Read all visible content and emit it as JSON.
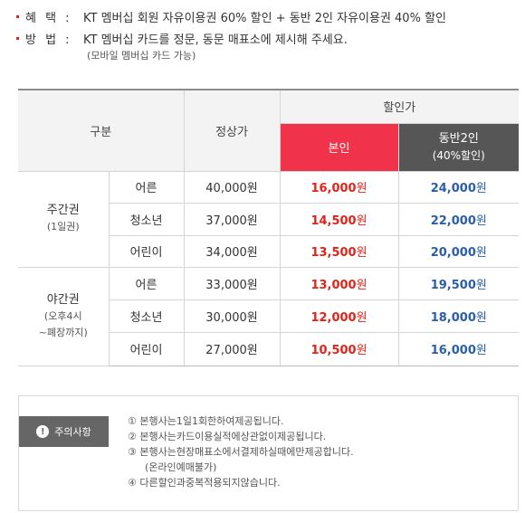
{
  "info": {
    "benefit_key": "혜 택 :",
    "benefit_text": "KT 멤버십 회원 자유이용권 60% 할인 + 동반 2인 자유이용권 40% 할인",
    "method_key": "방 법 :",
    "method_text": "KT 멤버십 카드를 정문, 동문 매표소에 제시해 주세요.",
    "method_note": "(모바일 멤버십 카드 가능)"
  },
  "table": {
    "header": {
      "category": "구분",
      "regular": "정상가",
      "discount": "할인가",
      "self": "본인",
      "companion": "동반2인",
      "companion_sub": "(40%할인)"
    },
    "groups": [
      {
        "name": "주간권",
        "sub": [
          "(1일권)"
        ],
        "rows": [
          {
            "age": "어른",
            "regular": "40,000원",
            "self": "16,000",
            "companion": "24,000"
          },
          {
            "age": "청소년",
            "regular": "37,000원",
            "self": "14,500",
            "companion": "22,000"
          },
          {
            "age": "어린이",
            "regular": "34,000원",
            "self": "13,500",
            "companion": "20,000"
          }
        ]
      },
      {
        "name": "야간권",
        "sub": [
          "(오후4시",
          "~폐장까지)"
        ],
        "rows": [
          {
            "age": "어른",
            "regular": "33,000원",
            "self": "13,000",
            "companion": "19,500"
          },
          {
            "age": "청소년",
            "regular": "30,000원",
            "self": "12,000",
            "companion": "18,000"
          },
          {
            "age": "어린이",
            "regular": "27,000원",
            "self": "10,500",
            "companion": "16,000"
          }
        ]
      }
    ],
    "won": "원"
  },
  "notice": {
    "title": "주의사항",
    "icon": "exclamation-icon",
    "items": [
      "① 본행사는1일1회한하여제공됩니다.",
      "② 본행사는카드이용실적에상관없이제공됩니다.",
      "③ 본행사는현장매표소에서결제하실때에만제공합니다.",
      "(온라인예매불가)",
      "④ 다른할인과중복적용되지않습니다."
    ]
  },
  "colors": {
    "accent_red": "#f0334a",
    "price_red": "#e2231a",
    "price_blue": "#2a5fa8",
    "header_dark": "#565656",
    "badge_gray": "#666666"
  }
}
